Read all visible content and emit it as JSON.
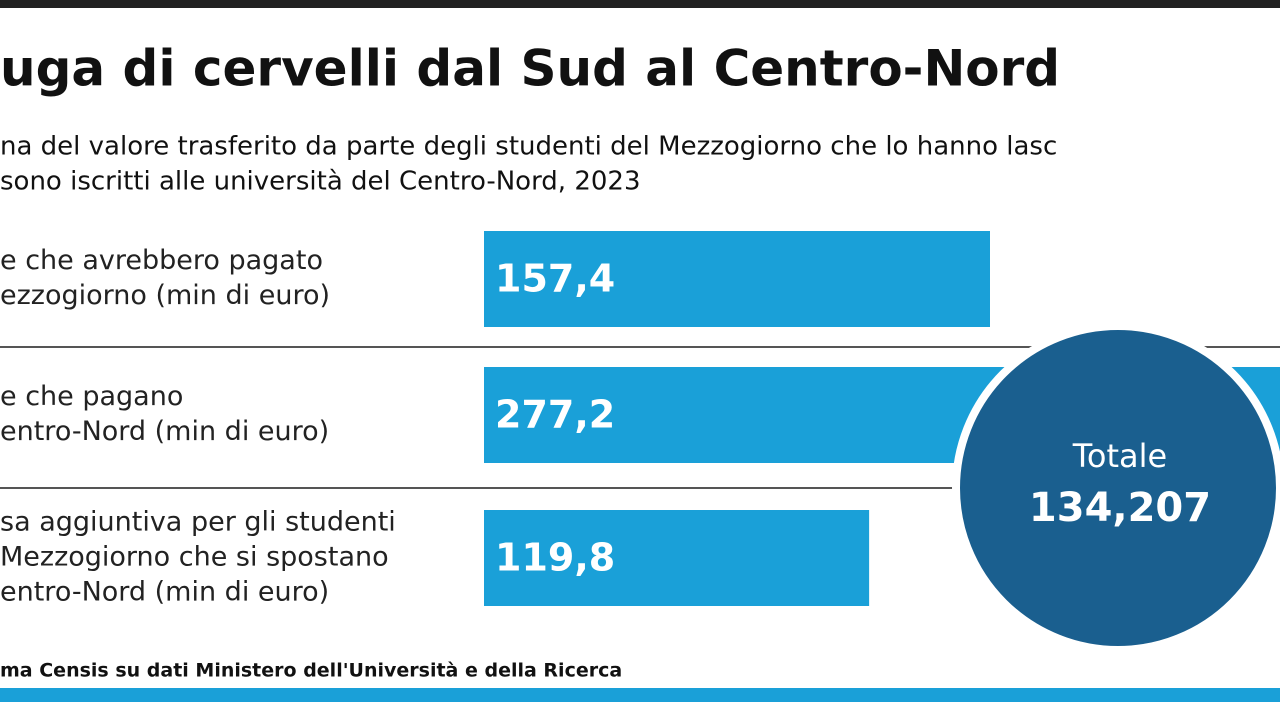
{
  "chart_data": {
    "type": "bar",
    "title": "uga di cervelli dal Sud al Centro-Nord",
    "subtitle": [
      "na del valore trasferito da parte degli studenti del Mezzogiorno che lo hanno lasc",
      "sono iscritti alle università del Centro-Nord, 2023"
    ],
    "categories": [
      [
        "e che avrebbero pagato",
        "ezzogiorno (min di euro)"
      ],
      [
        "e che pagano",
        "entro-Nord (min di euro)"
      ],
      [
        "sa aggiuntiva per gli studenti",
        "Mezzogiorno che si spostano",
        "entro-Nord (min di euro)"
      ]
    ],
    "values": [
      157.4,
      277.2,
      119.8
    ],
    "value_labels": [
      "157,4",
      "277,2",
      "119,8"
    ],
    "color": "#1aa0d8",
    "total_label": "Totale",
    "total_value": "134,207",
    "source": "ma Censis su dati Ministero dell'Università e della Ricerca"
  }
}
